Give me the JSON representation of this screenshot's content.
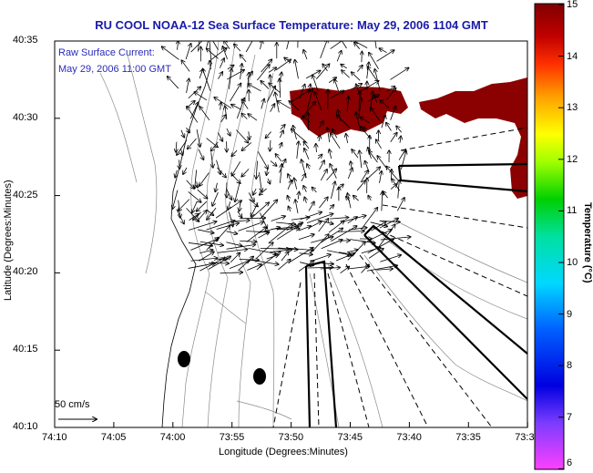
{
  "title": "RU COOL  NOAA-12  Sea Surface Temperature:  May 29, 2006 1104 GMT",
  "current_label_line1": "Raw Surface Current:",
  "current_label_line2": "May 29, 2006 11:00 GMT",
  "scale_label": "50 cm/s",
  "x_axis_title": "Longitude (Degrees:Minutes)",
  "y_axis_title": "Latitude (Degrees:Minutes)",
  "x_ticks": [
    "74:10",
    "74:05",
    "74:00",
    "73:55",
    "73:50",
    "73:45",
    "73:40",
    "73:35",
    "73:3"
  ],
  "y_ticks": [
    "40:35",
    "40:30",
    "40:25",
    "40:20",
    "40:15",
    "40:10"
  ],
  "colorbar": {
    "title": "Temperature (°C)",
    "ticks": [
      "15",
      "14",
      "13",
      "12",
      "11",
      "10",
      "9",
      "8",
      "7",
      "6"
    ]
  }
}
